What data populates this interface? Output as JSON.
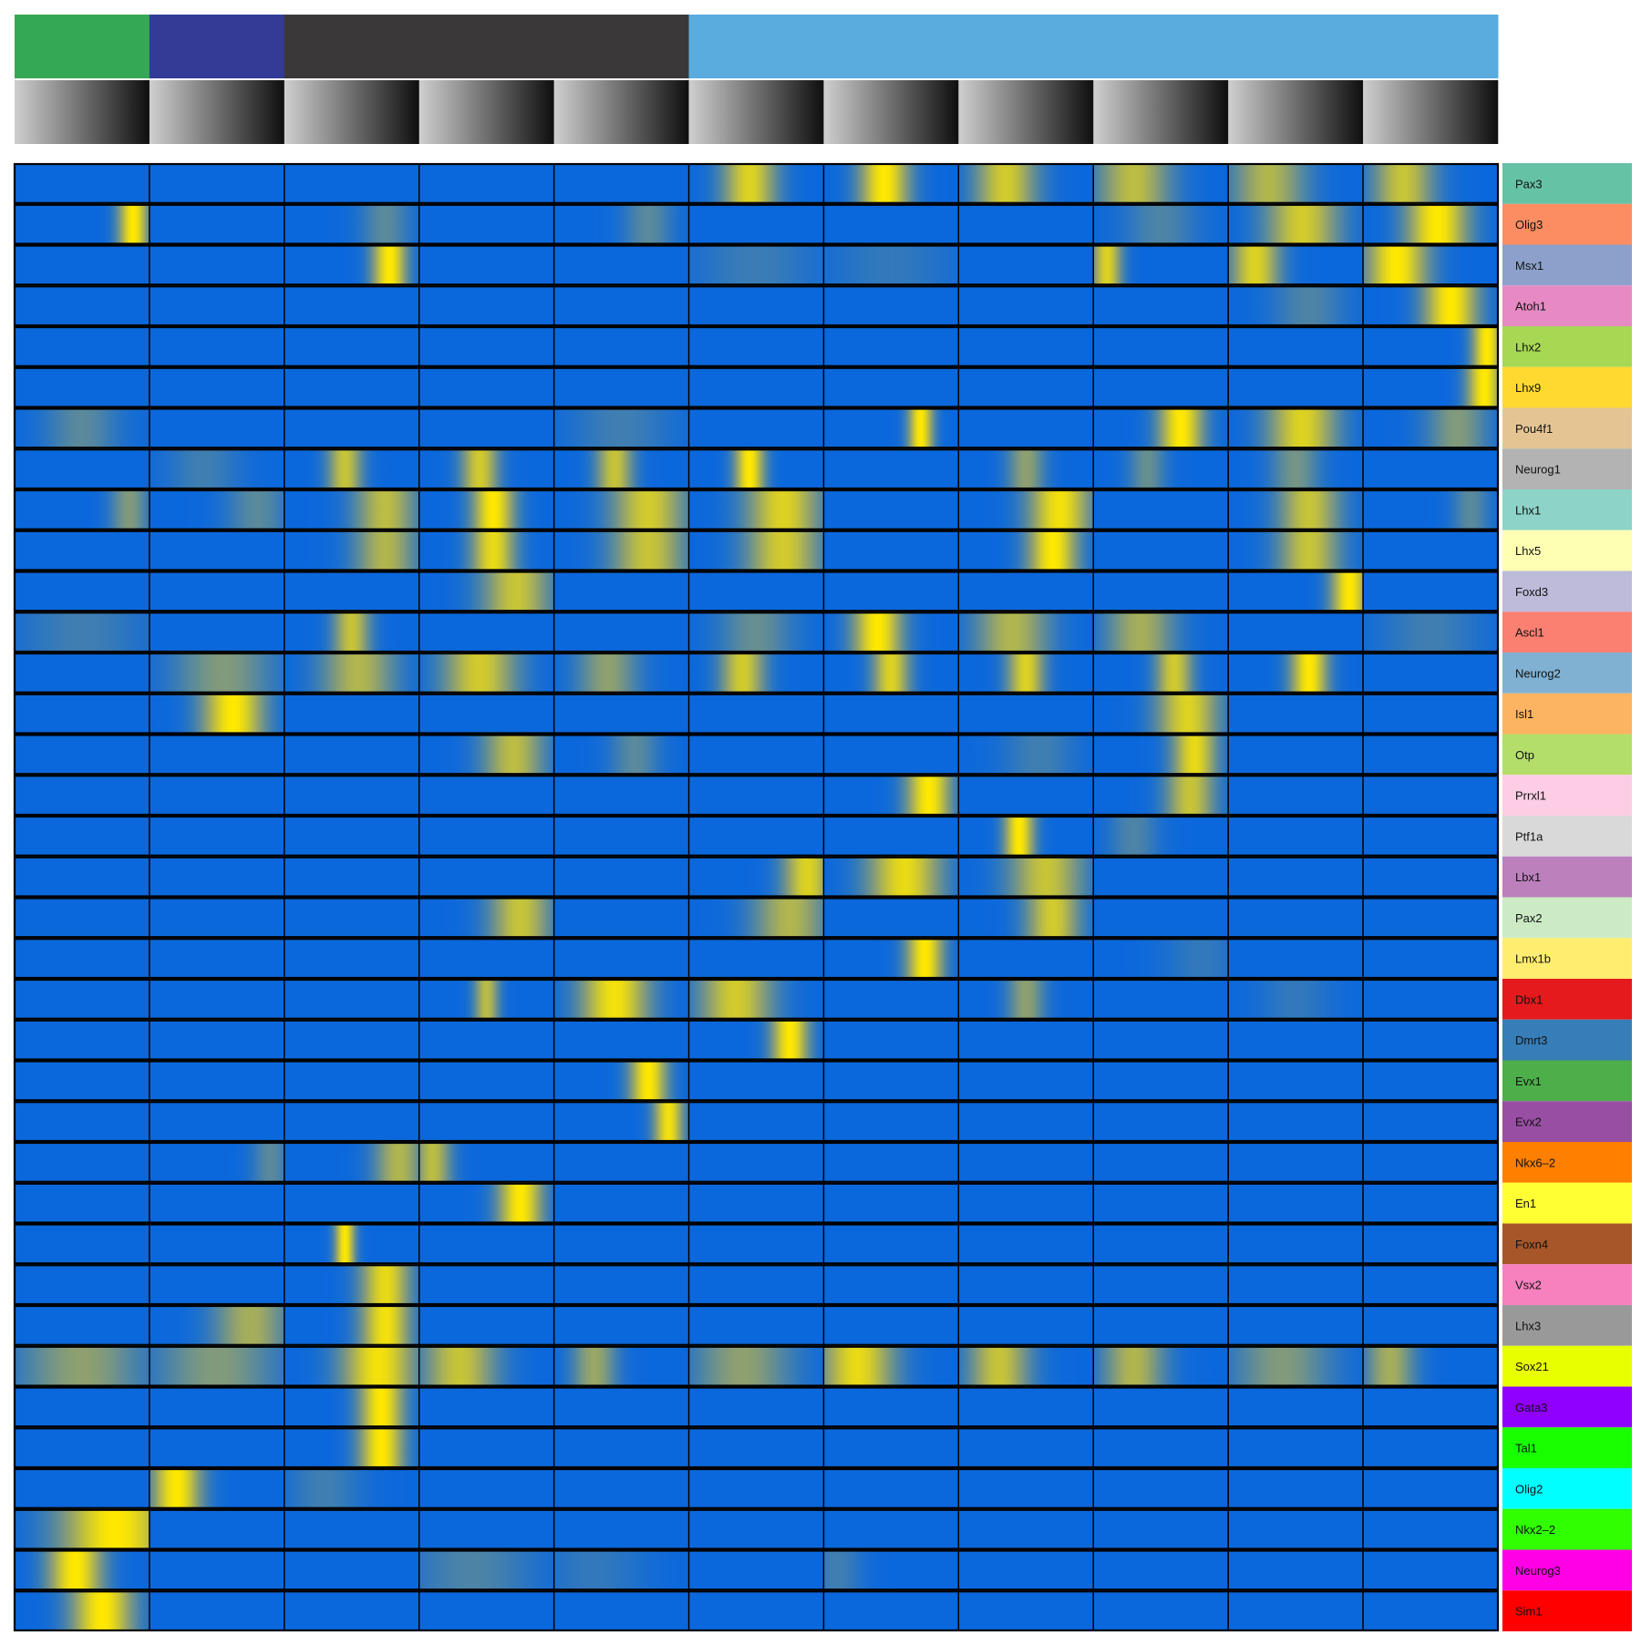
{
  "chart_data": {
    "type": "heatmap",
    "colors": {
      "low": "#0b68dc",
      "mid": "#8fa070",
      "high": "#ffe800",
      "grid": "#000000"
    },
    "column_groups": [
      {
        "color": "#35a853",
        "count": 1
      },
      {
        "color": "#333b97",
        "count": 1
      },
      {
        "color": "#3a3838",
        "count": 3
      },
      {
        "color": "#5aacde",
        "count": 6
      }
    ],
    "pseudotime_gradient": {
      "start": "#cfcfcf",
      "end": "#0e0e0e"
    },
    "columns_per_block": 40,
    "n_blocks": 11,
    "genes": [
      {
        "name": "Pax3",
        "color": "#66c2a5",
        "peaks": [
          [
            5,
            0.45,
            0.22,
            0.85
          ],
          [
            6,
            0.45,
            0.2,
            1.0
          ],
          [
            7,
            0.35,
            0.25,
            0.8
          ],
          [
            8,
            0.3,
            0.3,
            0.7
          ],
          [
            9,
            0.3,
            0.3,
            0.65
          ],
          [
            10,
            0.3,
            0.25,
            0.75
          ]
        ]
      },
      {
        "name": "Olig3",
        "color": "#fc8d62",
        "peaks": [
          [
            0,
            0.88,
            0.12,
            1.0
          ],
          [
            2,
            0.75,
            0.2,
            0.3
          ],
          [
            4,
            0.7,
            0.2,
            0.3
          ],
          [
            8,
            0.5,
            0.3,
            0.25
          ],
          [
            9,
            0.55,
            0.3,
            0.8
          ],
          [
            10,
            0.55,
            0.25,
            1.0
          ]
        ]
      },
      {
        "name": "Msx1",
        "color": "#8da0cb",
        "peaks": [
          [
            2,
            0.78,
            0.14,
            1.0
          ],
          [
            5,
            0.5,
            0.5,
            0.18
          ],
          [
            6,
            0.5,
            0.5,
            0.15
          ],
          [
            8,
            0.1,
            0.12,
            0.85
          ],
          [
            9,
            0.2,
            0.2,
            0.85
          ],
          [
            10,
            0.25,
            0.25,
            1.0
          ]
        ]
      },
      {
        "name": "Atoh1",
        "color": "#e78ac3",
        "peaks": [
          [
            9,
            0.6,
            0.3,
            0.25
          ],
          [
            10,
            0.65,
            0.22,
            1.0
          ]
        ]
      },
      {
        "name": "Lhx2",
        "color": "#a6d854",
        "peaks": [
          [
            10,
            0.92,
            0.12,
            1.0
          ]
        ]
      },
      {
        "name": "Lhx9",
        "color": "#ffd92f",
        "peaks": [
          [
            10,
            0.9,
            0.14,
            1.0
          ]
        ]
      },
      {
        "name": "Pou4f1",
        "color": "#e5c494",
        "peaks": [
          [
            0,
            0.5,
            0.3,
            0.3
          ],
          [
            4,
            0.5,
            0.4,
            0.2
          ],
          [
            6,
            0.72,
            0.1,
            1.0
          ],
          [
            8,
            0.65,
            0.18,
            1.0
          ],
          [
            9,
            0.55,
            0.28,
            0.85
          ],
          [
            10,
            0.7,
            0.25,
            0.45
          ]
        ]
      },
      {
        "name": "Neurog1",
        "color": "#b3b3b3",
        "peaks": [
          [
            1,
            0.4,
            0.3,
            0.2
          ],
          [
            2,
            0.45,
            0.14,
            0.75
          ],
          [
            3,
            0.45,
            0.15,
            0.8
          ],
          [
            4,
            0.45,
            0.15,
            0.75
          ],
          [
            5,
            0.45,
            0.12,
            1.0
          ],
          [
            7,
            0.5,
            0.15,
            0.5
          ],
          [
            8,
            0.4,
            0.15,
            0.35
          ],
          [
            9,
            0.5,
            0.2,
            0.4
          ]
        ]
      },
      {
        "name": "Lhx1",
        "color": "#8dd3c7",
        "peaks": [
          [
            0,
            0.85,
            0.15,
            0.45
          ],
          [
            1,
            0.8,
            0.25,
            0.3
          ],
          [
            2,
            0.75,
            0.25,
            0.7
          ],
          [
            3,
            0.55,
            0.17,
            1.0
          ],
          [
            4,
            0.7,
            0.3,
            0.8
          ],
          [
            5,
            0.7,
            0.3,
            0.85
          ],
          [
            7,
            0.75,
            0.25,
            0.95
          ],
          [
            9,
            0.6,
            0.25,
            0.75
          ],
          [
            10,
            0.8,
            0.15,
            0.3
          ]
        ]
      },
      {
        "name": "Lhx5",
        "color": "#ffffb3",
        "peaks": [
          [
            2,
            0.75,
            0.25,
            0.65
          ],
          [
            3,
            0.55,
            0.18,
            0.9
          ],
          [
            4,
            0.7,
            0.3,
            0.75
          ],
          [
            5,
            0.7,
            0.3,
            0.8
          ],
          [
            7,
            0.7,
            0.2,
            1.0
          ],
          [
            9,
            0.6,
            0.25,
            0.75
          ]
        ]
      },
      {
        "name": "Foxd3",
        "color": "#bebada",
        "peaks": [
          [
            3,
            0.72,
            0.28,
            0.75
          ],
          [
            9,
            0.9,
            0.15,
            1.0
          ]
        ]
      },
      {
        "name": "Ascl1",
        "color": "#fb8072",
        "peaks": [
          [
            0,
            0.5,
            0.5,
            0.2
          ],
          [
            2,
            0.5,
            0.15,
            0.75
          ],
          [
            5,
            0.5,
            0.3,
            0.35
          ],
          [
            6,
            0.4,
            0.2,
            1.0
          ],
          [
            7,
            0.4,
            0.3,
            0.65
          ],
          [
            8,
            0.35,
            0.28,
            0.6
          ],
          [
            10,
            0.5,
            0.4,
            0.2
          ]
        ]
      },
      {
        "name": "Neurog2",
        "color": "#80b1d3",
        "peaks": [
          [
            1,
            0.55,
            0.4,
            0.45
          ],
          [
            2,
            0.55,
            0.3,
            0.65
          ],
          [
            3,
            0.45,
            0.3,
            0.8
          ],
          [
            4,
            0.4,
            0.25,
            0.5
          ],
          [
            5,
            0.4,
            0.18,
            0.8
          ],
          [
            6,
            0.5,
            0.15,
            0.85
          ],
          [
            7,
            0.5,
            0.15,
            0.85
          ],
          [
            8,
            0.6,
            0.15,
            0.8
          ],
          [
            9,
            0.6,
            0.15,
            1.0
          ]
        ]
      },
      {
        "name": "Isl1",
        "color": "#fdb462",
        "peaks": [
          [
            1,
            0.62,
            0.25,
            1.0
          ],
          [
            8,
            0.7,
            0.25,
            0.85
          ]
        ]
      },
      {
        "name": "Otp",
        "color": "#b3de69",
        "peaks": [
          [
            3,
            0.7,
            0.25,
            0.7
          ],
          [
            4,
            0.6,
            0.2,
            0.3
          ],
          [
            7,
            0.6,
            0.3,
            0.2
          ],
          [
            8,
            0.75,
            0.18,
            0.9
          ]
        ]
      },
      {
        "name": "Prrxl1",
        "color": "#fccde5",
        "peaks": [
          [
            6,
            0.78,
            0.18,
            1.0
          ],
          [
            8,
            0.72,
            0.2,
            0.75
          ]
        ]
      },
      {
        "name": "Ptf1a",
        "color": "#d9d9d9",
        "peaks": [
          [
            7,
            0.45,
            0.12,
            1.0
          ],
          [
            8,
            0.3,
            0.2,
            0.25
          ]
        ]
      },
      {
        "name": "Lbx1",
        "color": "#bc80bd",
        "peaks": [
          [
            5,
            0.88,
            0.2,
            0.85
          ],
          [
            6,
            0.6,
            0.3,
            0.9
          ],
          [
            7,
            0.65,
            0.3,
            0.75
          ]
        ]
      },
      {
        "name": "Pax2",
        "color": "#ccebc5",
        "peaks": [
          [
            3,
            0.75,
            0.25,
            0.75
          ],
          [
            5,
            0.75,
            0.3,
            0.65
          ],
          [
            7,
            0.7,
            0.22,
            0.8
          ]
        ]
      },
      {
        "name": "Lmx1b",
        "color": "#ffed6f",
        "peaks": [
          [
            6,
            0.75,
            0.15,
            1.0
          ],
          [
            8,
            0.8,
            0.3,
            0.15
          ]
        ]
      },
      {
        "name": "Dbx1",
        "color": "#e41a1c",
        "peaks": [
          [
            3,
            0.5,
            0.1,
            0.7
          ],
          [
            4,
            0.45,
            0.28,
            0.95
          ],
          [
            5,
            0.35,
            0.3,
            0.8
          ],
          [
            7,
            0.5,
            0.15,
            0.5
          ],
          [
            9,
            0.5,
            0.3,
            0.15
          ]
        ]
      },
      {
        "name": "Dmrt3",
        "color": "#377eb8",
        "peaks": [
          [
            5,
            0.75,
            0.15,
            1.0
          ]
        ]
      },
      {
        "name": "Evx1",
        "color": "#4daf4a",
        "peaks": [
          [
            4,
            0.7,
            0.15,
            1.0
          ]
        ]
      },
      {
        "name": "Evx2",
        "color": "#984ea3",
        "peaks": [
          [
            4,
            0.85,
            0.12,
            0.95
          ]
        ]
      },
      {
        "name": "Nkx6–2",
        "color": "#ff7f00",
        "peaks": [
          [
            1,
            0.9,
            0.15,
            0.3
          ],
          [
            2,
            0.85,
            0.2,
            0.65
          ],
          [
            3,
            0.1,
            0.15,
            0.7
          ]
        ]
      },
      {
        "name": "En1",
        "color": "#ffff33",
        "peaks": [
          [
            3,
            0.75,
            0.18,
            1.0
          ]
        ]
      },
      {
        "name": "Foxn4",
        "color": "#a65628",
        "peaks": [
          [
            2,
            0.45,
            0.08,
            1.0
          ]
        ]
      },
      {
        "name": "Vsx2",
        "color": "#f781bf",
        "peaks": [
          [
            2,
            0.75,
            0.2,
            0.9
          ]
        ]
      },
      {
        "name": "Lhx3",
        "color": "#999999",
        "peaks": [
          [
            1,
            0.75,
            0.3,
            0.6
          ],
          [
            2,
            0.75,
            0.2,
            0.95
          ]
        ]
      },
      {
        "name": "Sox21",
        "color": "#e8ff00",
        "peaks": [
          [
            0,
            0.5,
            0.5,
            0.5
          ],
          [
            1,
            0.5,
            0.5,
            0.45
          ],
          [
            2,
            0.7,
            0.3,
            0.95
          ],
          [
            3,
            0.3,
            0.3,
            0.75
          ],
          [
            4,
            0.3,
            0.18,
            0.55
          ],
          [
            5,
            0.4,
            0.4,
            0.5
          ],
          [
            6,
            0.25,
            0.3,
            0.9
          ],
          [
            7,
            0.3,
            0.25,
            0.75
          ],
          [
            8,
            0.3,
            0.25,
            0.65
          ],
          [
            9,
            0.4,
            0.4,
            0.45
          ],
          [
            10,
            0.2,
            0.2,
            0.6
          ]
        ]
      },
      {
        "name": "Gata3",
        "color": "#8f00ff",
        "peaks": [
          [
            2,
            0.72,
            0.18,
            1.0
          ]
        ]
      },
      {
        "name": "Tal1",
        "color": "#18ff00",
        "peaks": [
          [
            2,
            0.72,
            0.18,
            1.0
          ]
        ]
      },
      {
        "name": "Olig2",
        "color": "#00ffff",
        "peaks": [
          [
            1,
            0.2,
            0.2,
            1.0
          ],
          [
            2,
            0.3,
            0.3,
            0.2
          ]
        ]
      },
      {
        "name": "Nkx2–2",
        "color": "#2fff00",
        "peaks": [
          [
            0,
            0.75,
            0.45,
            1.0
          ]
        ]
      },
      {
        "name": "Neurog3",
        "color": "#ff00e6",
        "peaks": [
          [
            0,
            0.45,
            0.22,
            1.0
          ],
          [
            3,
            0.4,
            0.5,
            0.25
          ],
          [
            4,
            0.3,
            0.4,
            0.15
          ],
          [
            6,
            0.1,
            0.2,
            0.2
          ]
        ]
      },
      {
        "name": "Sim1",
        "color": "#ff0000",
        "peaks": [
          [
            0,
            0.65,
            0.25,
            1.0
          ]
        ]
      }
    ]
  }
}
